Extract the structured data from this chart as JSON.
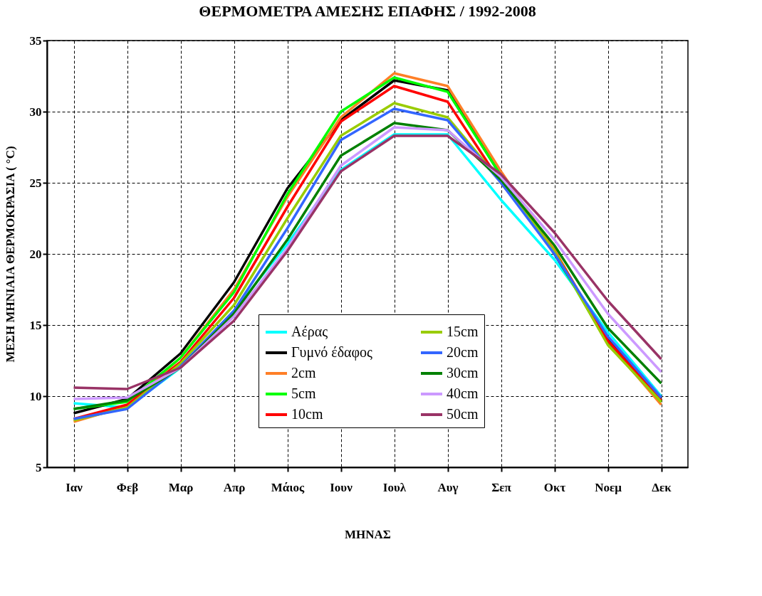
{
  "chart_data": {
    "type": "line",
    "title": "ΘΕΡΜΟΜΕΤΡΑ ΑΜΕΣΗΣ ΕΠΑΦΗΣ / 1992-2008",
    "xlabel": "ΜΗΝΑΣ",
    "ylabel": "ΜΕΣΗ ΜΗΝΙΑΙΑ ΘΕΡΜΟΚΡΑΣΙΑ ( °C)",
    "categories": [
      "Ιαν",
      "Φεβ",
      "Μαρ",
      "Απρ",
      "Μάιος",
      "Ιουν",
      "Ιουλ",
      "Αυγ",
      "Σεπ",
      "Οκτ",
      "Νοεμ",
      "Δεκ"
    ],
    "ylim": [
      5,
      35
    ],
    "yticks": [
      5,
      10,
      15,
      20,
      25,
      30,
      35
    ],
    "grid": true,
    "legend": "bottom",
    "line_style": "solid",
    "marker": "none",
    "series": [
      {
        "name": "Αέρας",
        "color": "#00ffff",
        "values": [
          9.5,
          9.2,
          12.0,
          16.0,
          20.7,
          25.9,
          28.4,
          28.4,
          23.8,
          19.6,
          14.5,
          10.0
        ]
      },
      {
        "name": "Γυμνό έδαφος",
        "color": "#000000",
        "values": [
          8.8,
          9.8,
          13.0,
          18.0,
          24.6,
          29.4,
          32.2,
          31.5,
          25.5,
          20.0,
          14.0,
          9.8
        ]
      },
      {
        "name": "2cm",
        "color": "#ff7f27",
        "values": [
          8.2,
          9.3,
          12.7,
          17.5,
          24.0,
          29.6,
          32.7,
          31.8,
          25.8,
          20.3,
          13.8,
          9.4
        ]
      },
      {
        "name": "5cm",
        "color": "#00ff00",
        "values": [
          9.1,
          9.6,
          12.7,
          17.3,
          24.2,
          30.0,
          32.4,
          31.4,
          25.5,
          20.1,
          13.7,
          9.6
        ]
      },
      {
        "name": "10cm",
        "color": "#ff0000",
        "values": [
          8.4,
          9.4,
          12.4,
          16.9,
          23.3,
          29.3,
          31.8,
          30.7,
          25.0,
          20.2,
          13.9,
          9.7
        ]
      },
      {
        "name": "15cm",
        "color": "#99cc00",
        "values": [
          8.3,
          9.2,
          12.3,
          16.4,
          22.5,
          28.3,
          30.6,
          29.6,
          25.1,
          20.2,
          13.6,
          9.6
        ]
      },
      {
        "name": "20cm",
        "color": "#3366ff",
        "values": [
          8.4,
          9.1,
          12.1,
          16.0,
          21.8,
          28.0,
          30.2,
          29.4,
          25.0,
          20.0,
          14.2,
          9.9
        ]
      },
      {
        "name": "30cm",
        "color": "#008000",
        "values": [
          9.1,
          9.7,
          12.0,
          15.8,
          21.0,
          26.9,
          29.2,
          28.7,
          25.2,
          20.6,
          14.8,
          10.9
        ]
      },
      {
        "name": "40cm",
        "color": "#cc99ff",
        "values": [
          9.8,
          9.9,
          12.0,
          15.6,
          20.4,
          26.2,
          28.9,
          28.7,
          25.4,
          21.0,
          15.8,
          11.7
        ]
      },
      {
        "name": "50cm",
        "color": "#993366",
        "values": [
          10.6,
          10.5,
          12.0,
          15.3,
          20.2,
          25.8,
          28.3,
          28.3,
          25.6,
          21.5,
          16.7,
          12.6
        ]
      }
    ]
  }
}
